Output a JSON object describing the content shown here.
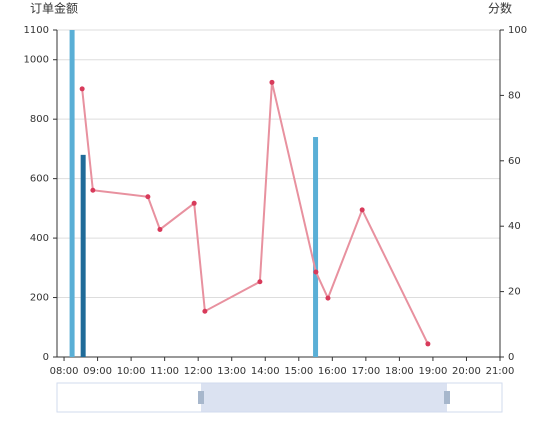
{
  "chart_data": {
    "type": "bar-line",
    "y_label": "订单金额",
    "y2_label": "分数",
    "xlim": [
      7.79,
      21
    ],
    "xticks": [
      {
        "value": 8,
        "label": "08:00"
      },
      {
        "value": 9,
        "label": "09:00"
      },
      {
        "value": 10,
        "label": "10:00"
      },
      {
        "value": 11,
        "label": "11:00"
      },
      {
        "value": 12,
        "label": "12:00"
      },
      {
        "value": 13,
        "label": "13:00"
      },
      {
        "value": 14,
        "label": "14:00"
      },
      {
        "value": 15,
        "label": "15:00"
      },
      {
        "value": 16,
        "label": "16:00"
      },
      {
        "value": 17,
        "label": "17:00"
      },
      {
        "value": 18,
        "label": "18:00"
      },
      {
        "value": 19,
        "label": "19:00"
      },
      {
        "value": 20,
        "label": "20:00"
      },
      {
        "value": 21,
        "label": "21:00"
      }
    ],
    "ylim": [
      0,
      1100
    ],
    "yticks": [
      0,
      200,
      400,
      600,
      800,
      1000,
      1100
    ],
    "y2lim": [
      0,
      100
    ],
    "y2ticks": [
      0,
      20,
      40,
      60,
      80,
      100
    ],
    "grid": true,
    "series": [
      {
        "type": "bar",
        "color": "#5aafd6",
        "x": [
          8.24,
          15.5
        ],
        "values": [
          1100,
          740
        ]
      },
      {
        "type": "bar",
        "color": "#1f6b99",
        "x": [
          8.57
        ],
        "values": [
          680
        ]
      },
      {
        "type": "line",
        "axis": "y2",
        "color": "#e8919f",
        "marker_color": "#d83a5a",
        "x": [
          8.54,
          8.86,
          10.5,
          10.86,
          11.88,
          12.2,
          13.84,
          14.2,
          15.51,
          15.87,
          16.89,
          18.85
        ],
        "values": [
          82,
          51,
          49,
          39,
          47,
          14,
          23,
          84,
          26,
          18,
          45,
          4
        ]
      }
    ]
  }
}
